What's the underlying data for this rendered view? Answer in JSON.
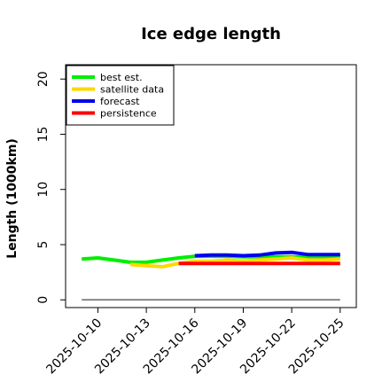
{
  "chart_data": {
    "type": "line",
    "title": "Ice edge length",
    "xlabel": "",
    "ylabel": "Length (1000km)",
    "ylim": [
      -0.7,
      21.3
    ],
    "xlim": [
      "2025-10-08",
      "2025-10-26"
    ],
    "y_ticks": [
      0,
      5,
      10,
      15,
      20
    ],
    "x_ticks": [
      "2025-10-10",
      "2025-10-13",
      "2025-10-16",
      "2025-10-19",
      "2025-10-22",
      "2025-10-25"
    ],
    "x_tick_highlight": {
      "label": "2025-10-16",
      "color": "#228b22"
    },
    "grid": false,
    "legend_position": "top-left",
    "series": [
      {
        "name": "best est.",
        "color": "#00ee00",
        "x": [
          "2025-10-09",
          "2025-10-10",
          "2025-10-11",
          "2025-10-12",
          "2025-10-13",
          "2025-10-14",
          "2025-10-15",
          "2025-10-16",
          "2025-10-17",
          "2025-10-18",
          "2025-10-19",
          "2025-10-20",
          "2025-10-21",
          "2025-10-22",
          "2025-10-23",
          "2025-10-24",
          "2025-10-25"
        ],
        "y": [
          3.7,
          3.8,
          3.6,
          3.4,
          3.4,
          3.6,
          3.8,
          3.95,
          3.95,
          3.95,
          3.9,
          3.9,
          3.9,
          3.9,
          3.85,
          3.85,
          3.85
        ]
      },
      {
        "name": "satellite data",
        "color": "#ffd700",
        "x": [
          "2025-10-12",
          "2025-10-13",
          "2025-10-14",
          "2025-10-15",
          "2025-10-16",
          "2025-10-17",
          "2025-10-18",
          "2025-10-19",
          "2025-10-20",
          "2025-10-21",
          "2025-10-22",
          "2025-10-23",
          "2025-10-24",
          "2025-10-25"
        ],
        "y": [
          3.2,
          3.1,
          3.0,
          3.3,
          3.5,
          3.5,
          3.6,
          3.5,
          3.6,
          3.7,
          3.8,
          3.6,
          3.6,
          3.7
        ]
      },
      {
        "name": "forecast",
        "color": "#0000ee",
        "x": [
          "2025-10-16",
          "2025-10-17",
          "2025-10-18",
          "2025-10-19",
          "2025-10-20",
          "2025-10-21",
          "2025-10-22",
          "2025-10-23",
          "2025-10-24",
          "2025-10-25"
        ],
        "y": [
          4.0,
          4.05,
          4.05,
          4.0,
          4.05,
          4.25,
          4.3,
          4.1,
          4.1,
          4.1
        ]
      },
      {
        "name": "persistence",
        "color": "#ff0000",
        "x": [
          "2025-10-15",
          "2025-10-16",
          "2025-10-17",
          "2025-10-18",
          "2025-10-19",
          "2025-10-20",
          "2025-10-21",
          "2025-10-22",
          "2025-10-23",
          "2025-10-24",
          "2025-10-25"
        ],
        "y": [
          3.3,
          3.3,
          3.3,
          3.3,
          3.3,
          3.3,
          3.3,
          3.3,
          3.3,
          3.3,
          3.3
        ]
      }
    ],
    "reference_line": {
      "color": "#666666",
      "x": [
        "2025-10-09",
        "2025-10-25"
      ],
      "y": 0
    }
  }
}
